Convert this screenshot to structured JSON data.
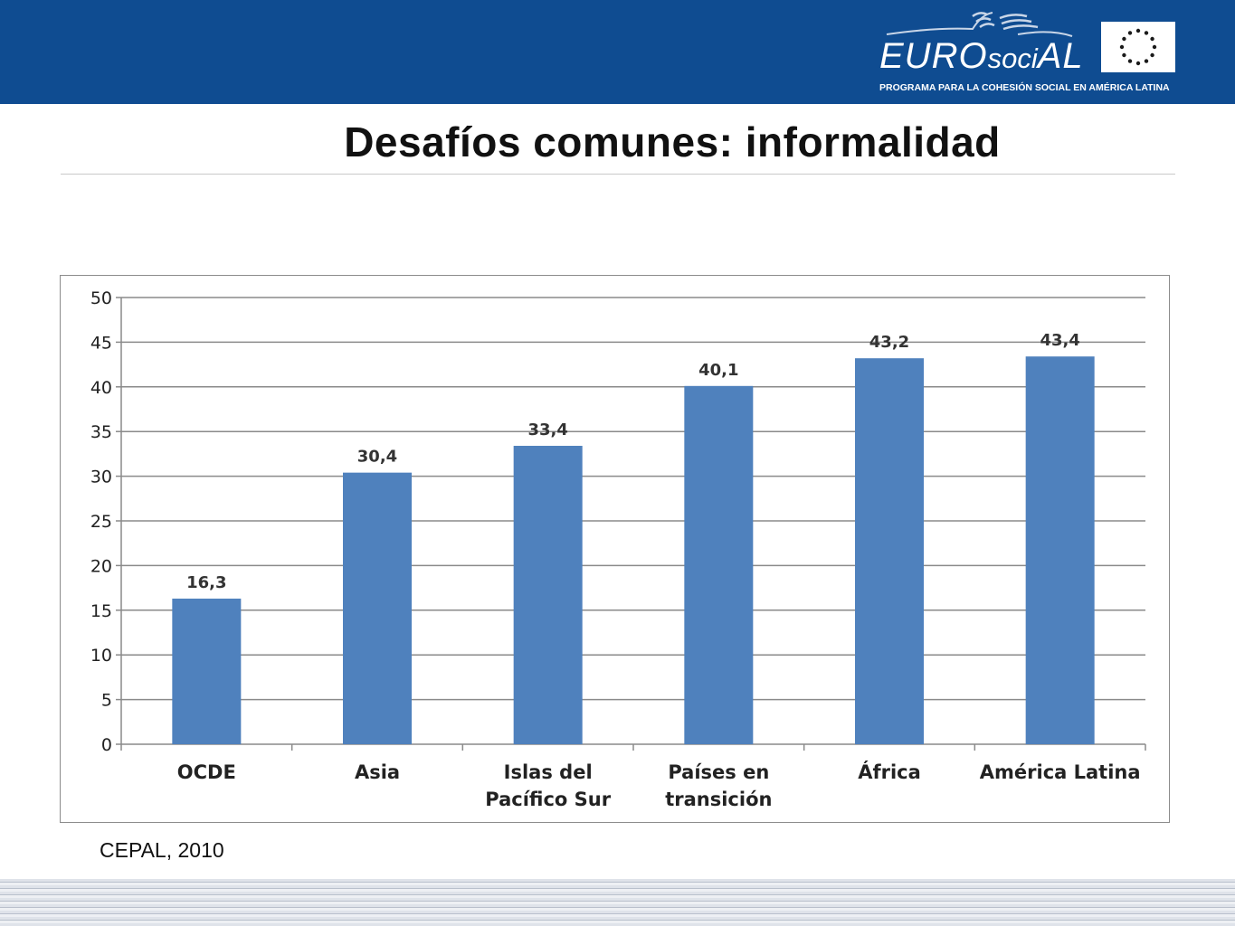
{
  "header": {
    "logo_text_a": "EURO",
    "logo_text_b": "soci",
    "logo_text_c": "AL",
    "tagline": "PROGRAMA PARA LA COHESIÓN SOCIAL EN AMÉRICA LATINA",
    "bar_color": "#0f4c91"
  },
  "slide_title": "Desafíos comunes: informalidad",
  "source_note": "CEPAL, 2010",
  "chart_data": {
    "type": "bar",
    "title": "",
    "xlabel": "",
    "ylabel": "",
    "ylim": [
      0,
      50
    ],
    "yticks": [
      0,
      5,
      10,
      15,
      20,
      25,
      30,
      35,
      40,
      45,
      50
    ],
    "grid": true,
    "bar_color": "#4f81bd",
    "categories": [
      [
        "OCDE"
      ],
      [
        "Asia"
      ],
      [
        "Islas del",
        "Pacífico Sur"
      ],
      [
        "Países en",
        "transición"
      ],
      [
        "África"
      ],
      [
        "América Latina"
      ]
    ],
    "values": [
      16.3,
      30.4,
      33.4,
      40.1,
      43.2,
      43.4
    ],
    "value_labels": [
      "16,3",
      "30,4",
      "33,4",
      "40,1",
      "43,2",
      "43,4"
    ]
  }
}
